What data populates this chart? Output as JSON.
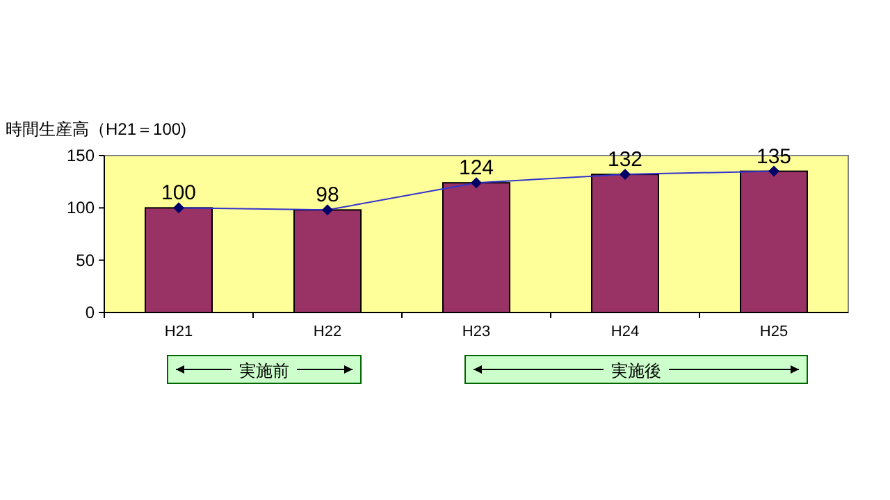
{
  "chart_data": {
    "type": "bar",
    "ylabel": "時間生産高（H21＝100)",
    "categories": [
      "H21",
      "H22",
      "H23",
      "H24",
      "H25"
    ],
    "series": [
      {
        "color": "#993366",
        "values": [
          100,
          98,
          124,
          132,
          135
        ]
      },
      {
        "type": "line",
        "color": "#3333cc",
        "marker": "diamond",
        "values": [
          100,
          98,
          124,
          132,
          135
        ],
        "value_labels": [
          "100",
          "98",
          "124",
          "132",
          "135"
        ]
      }
    ],
    "ylim": [
      0,
      150
    ],
    "yticks": [
      0,
      50,
      100,
      150
    ],
    "grid": false,
    "annotations": [
      "実施前",
      "実施後"
    ]
  }
}
